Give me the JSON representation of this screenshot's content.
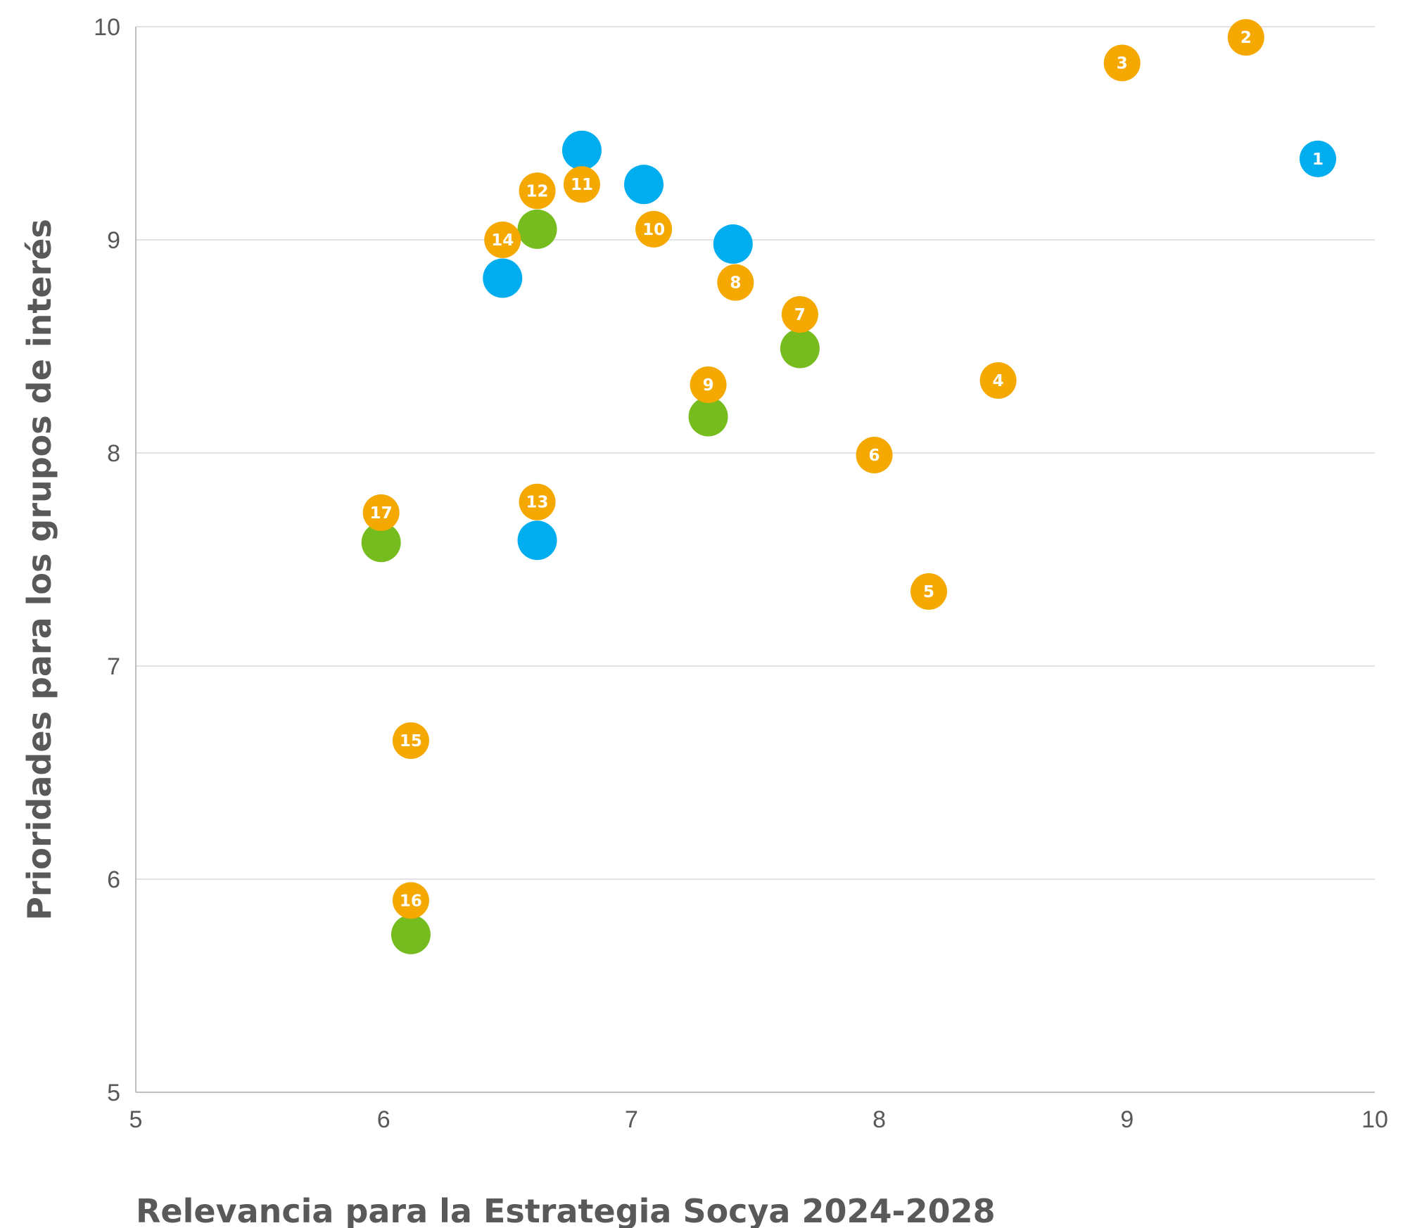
{
  "chart_data": {
    "type": "scatter",
    "xlabel": "Relevancia para la Estrategia Socya 2024-2028",
    "ylabel": "Prioridades para los grupos de interés",
    "xlim": [
      5,
      10
    ],
    "ylim": [
      5,
      10
    ],
    "xticks": [
      "5",
      "6",
      "7",
      "8",
      "9",
      "10"
    ],
    "yticks": [
      "5",
      "6",
      "7",
      "8",
      "9",
      "10"
    ],
    "grid": "horizontal",
    "colors": {
      "orange": "#F5A800",
      "blue": "#00AEEF",
      "green": "#77BC1F"
    },
    "series": [
      {
        "color": "orange",
        "points": [
          {
            "label": "2",
            "x": 9.48,
            "y": 9.95
          },
          {
            "label": "3",
            "x": 8.98,
            "y": 9.83
          },
          {
            "label": "4",
            "x": 8.48,
            "y": 8.34
          },
          {
            "label": "5",
            "x": 8.2,
            "y": 7.35
          },
          {
            "label": "6",
            "x": 7.98,
            "y": 7.99
          },
          {
            "label": "7",
            "x": 7.68,
            "y": 8.65
          },
          {
            "label": "8",
            "x": 7.42,
            "y": 8.8
          },
          {
            "label": "9",
            "x": 7.31,
            "y": 8.32
          },
          {
            "label": "10",
            "x": 7.09,
            "y": 9.05
          },
          {
            "label": "11",
            "x": 6.8,
            "y": 9.26
          },
          {
            "label": "12",
            "x": 6.62,
            "y": 9.23
          },
          {
            "label": "13",
            "x": 6.62,
            "y": 7.77
          },
          {
            "label": "14",
            "x": 6.48,
            "y": 9.0
          },
          {
            "label": "15",
            "x": 6.11,
            "y": 6.65
          },
          {
            "label": "16",
            "x": 6.11,
            "y": 5.9
          },
          {
            "label": "17",
            "x": 5.99,
            "y": 7.72
          }
        ]
      },
      {
        "color": "blue",
        "points": [
          {
            "label": "1",
            "x": 9.77,
            "y": 9.38
          },
          {
            "label": "",
            "x": 6.8,
            "y": 9.42
          },
          {
            "label": "",
            "x": 7.05,
            "y": 9.26
          },
          {
            "label": "",
            "x": 7.41,
            "y": 8.98
          },
          {
            "label": "",
            "x": 6.48,
            "y": 8.82
          },
          {
            "label": "",
            "x": 6.62,
            "y": 7.59
          }
        ]
      },
      {
        "color": "green",
        "points": [
          {
            "label": "",
            "x": 6.62,
            "y": 9.05
          },
          {
            "label": "",
            "x": 7.68,
            "y": 8.49
          },
          {
            "label": "",
            "x": 7.31,
            "y": 8.17
          },
          {
            "label": "",
            "x": 5.99,
            "y": 7.58
          },
          {
            "label": "",
            "x": 6.11,
            "y": 5.74
          }
        ]
      }
    ]
  }
}
